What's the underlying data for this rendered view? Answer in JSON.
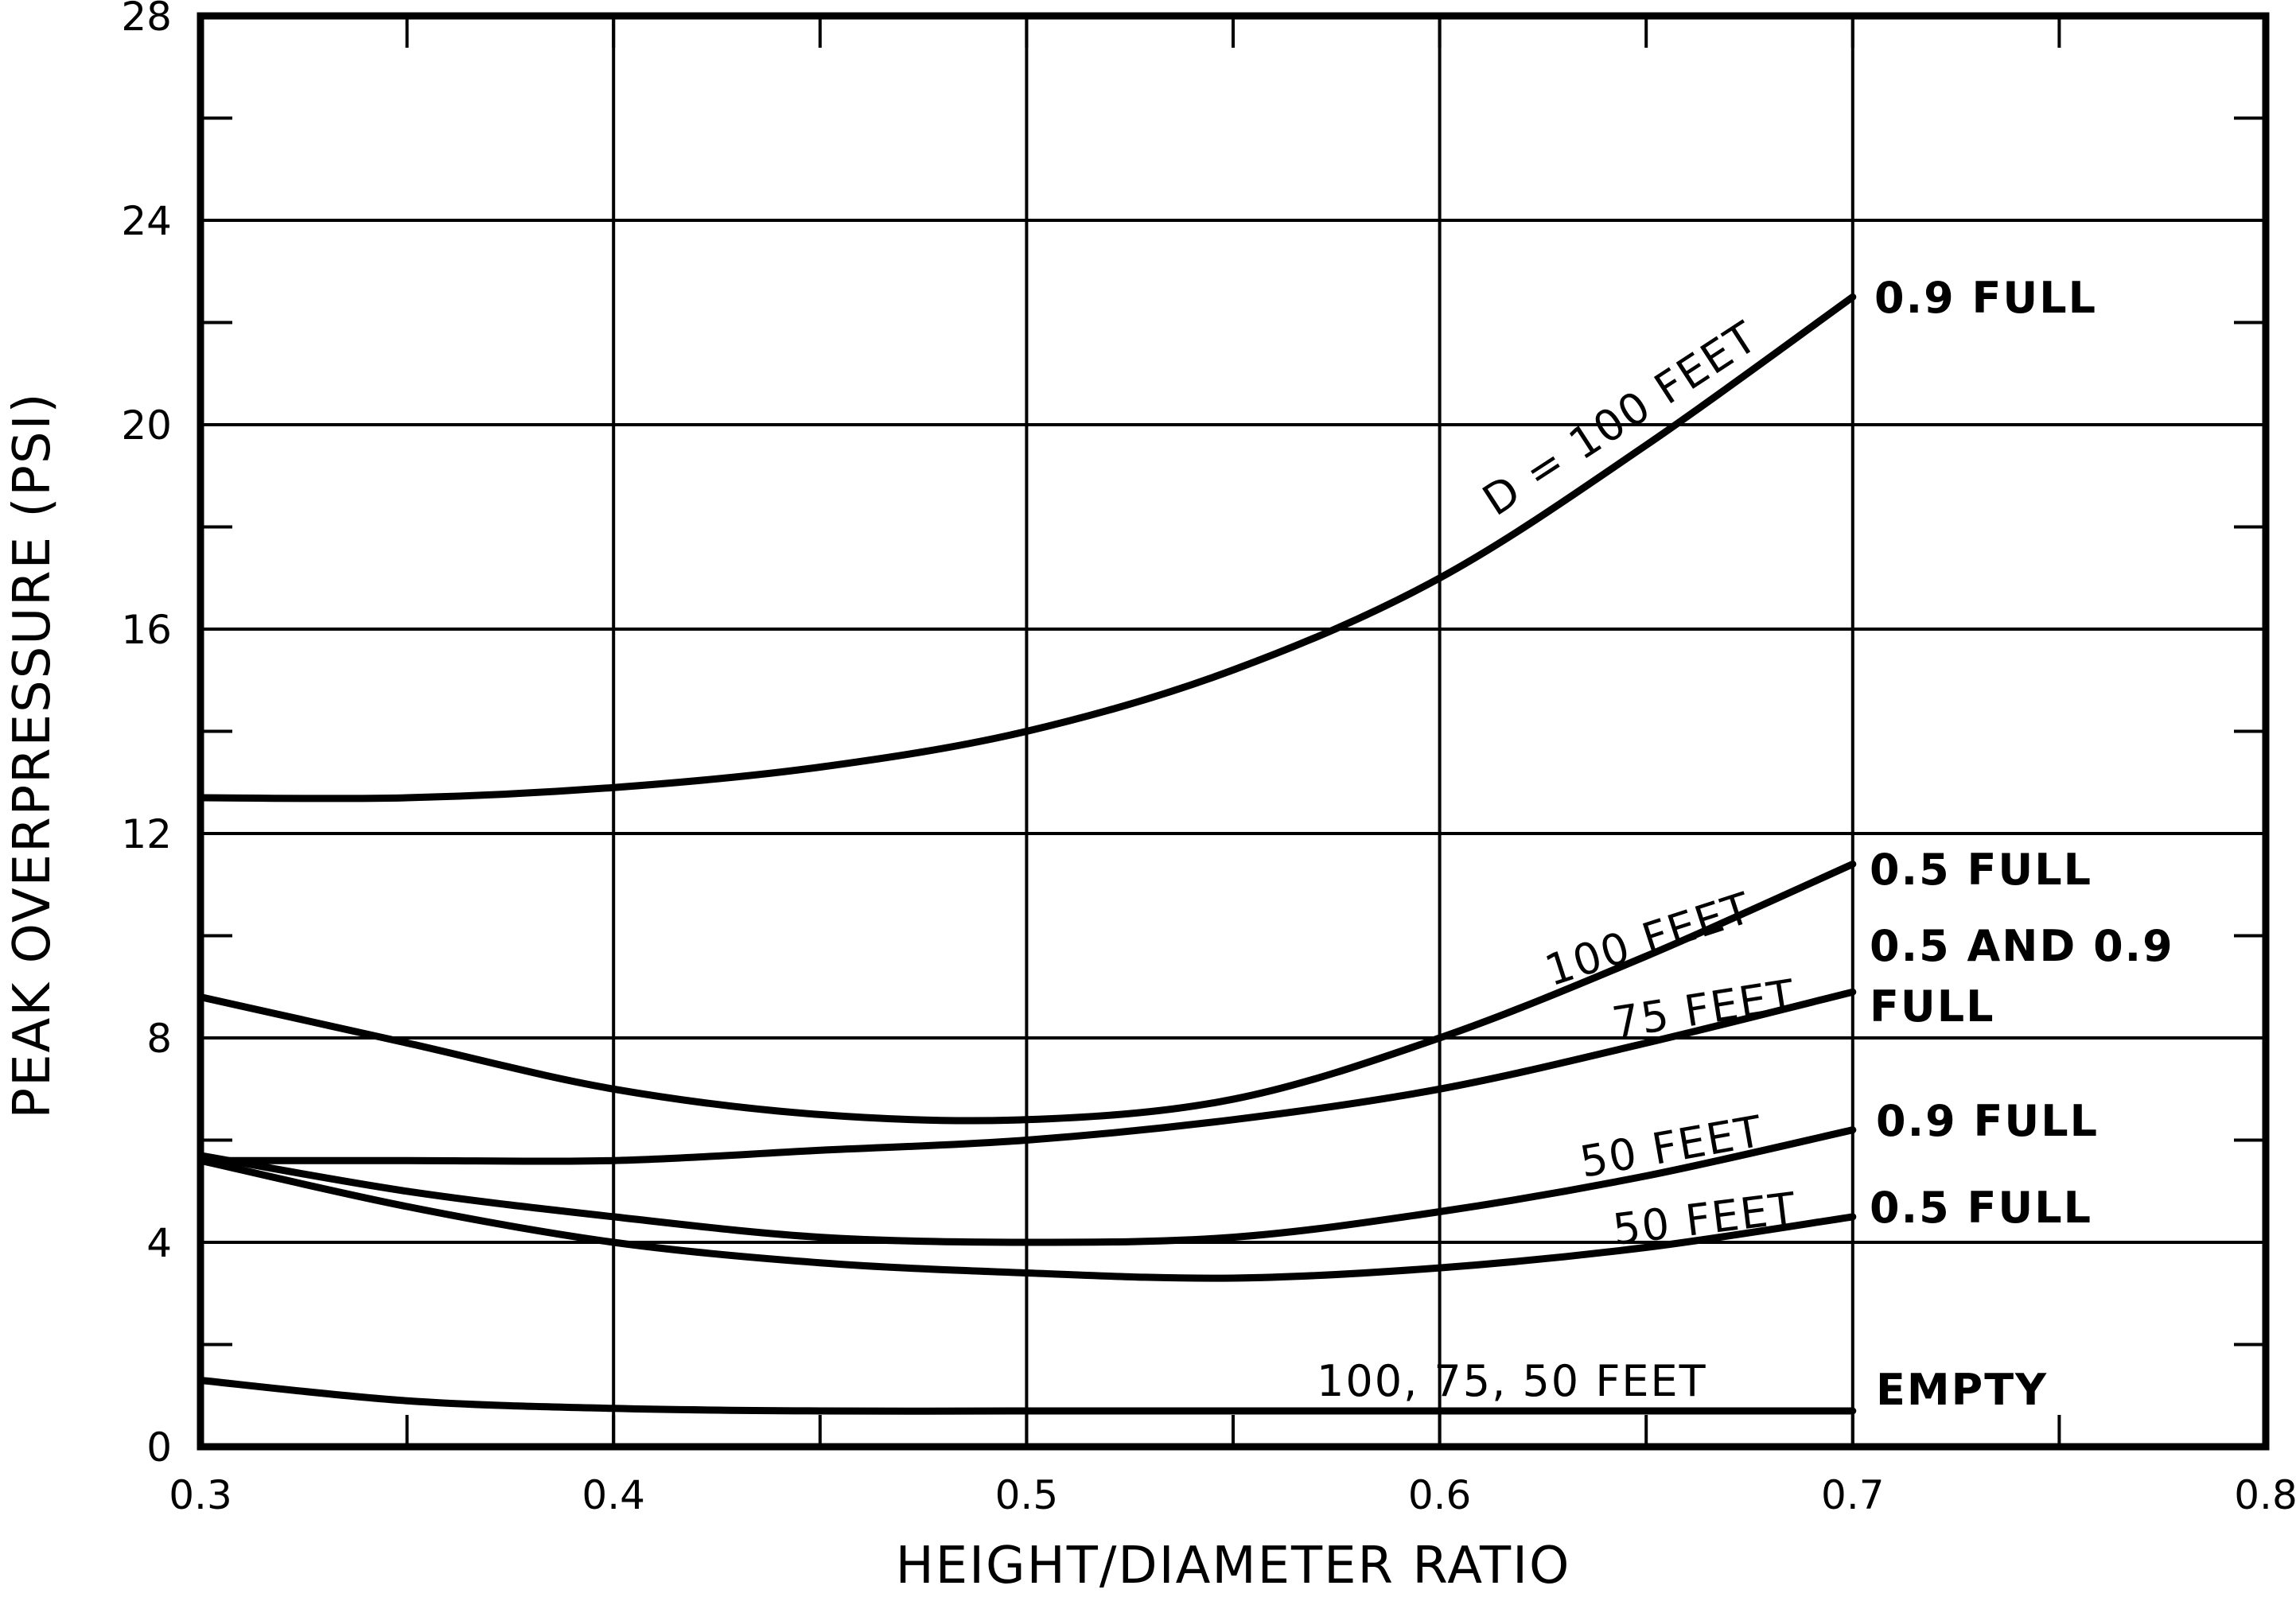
{
  "chart_data": {
    "type": "line",
    "title": "",
    "xlabel": "HEIGHT/DIAMETER RATIO",
    "ylabel": "PEAK OVERPRESSURE (PSI)",
    "xlim": [
      0.3,
      0.8
    ],
    "ylim": [
      0,
      28
    ],
    "x_ticks": [
      "0.3",
      "0.4",
      "0.5",
      "0.6",
      "0.7",
      "0.8"
    ],
    "y_ticks": [
      "0",
      "4",
      "8",
      "12",
      "16",
      "20",
      "24",
      "28"
    ],
    "grid": true,
    "series": [
      {
        "name": "D = 100 FEET",
        "end_label": "0.9 FULL",
        "x": [
          0.3,
          0.35,
          0.4,
          0.45,
          0.5,
          0.55,
          0.6,
          0.65,
          0.7
        ],
        "y": [
          12.7,
          12.7,
          12.9,
          13.3,
          14.0,
          15.2,
          17.0,
          19.6,
          22.5
        ]
      },
      {
        "name": "100 FEET",
        "end_label": "0.5 FULL",
        "x": [
          0.3,
          0.35,
          0.4,
          0.45,
          0.5,
          0.55,
          0.6,
          0.65,
          0.7
        ],
        "y": [
          8.8,
          7.9,
          7.0,
          6.5,
          6.4,
          6.8,
          8.0,
          9.6,
          11.4
        ]
      },
      {
        "name": "75 FEET",
        "end_label_line1": "0.5 AND 0.9",
        "end_label_line2": "FULL",
        "x": [
          0.3,
          0.35,
          0.4,
          0.45,
          0.5,
          0.55,
          0.6,
          0.65,
          0.7
        ],
        "y": [
          5.6,
          5.6,
          5.6,
          5.8,
          6.0,
          6.4,
          7.0,
          7.9,
          8.9
        ]
      },
      {
        "name": "50 FEET",
        "end_label": "0.9 FULL",
        "x": [
          0.3,
          0.35,
          0.4,
          0.45,
          0.5,
          0.55,
          0.6,
          0.65,
          0.7
        ],
        "y": [
          5.7,
          5.0,
          4.5,
          4.1,
          4.0,
          4.1,
          4.6,
          5.3,
          6.2
        ]
      },
      {
        "name": "50 FEET",
        "end_label": "0.5 FULL",
        "x": [
          0.3,
          0.35,
          0.4,
          0.45,
          0.5,
          0.55,
          0.6,
          0.65,
          0.7
        ],
        "y": [
          5.6,
          4.7,
          4.0,
          3.6,
          3.4,
          3.3,
          3.5,
          3.9,
          4.5
        ]
      },
      {
        "name": "100, 75, 50 FEET",
        "end_label": "EMPTY",
        "x": [
          0.3,
          0.35,
          0.4,
          0.45,
          0.5,
          0.55,
          0.6,
          0.65,
          0.7
        ],
        "y": [
          1.3,
          0.9,
          0.75,
          0.7,
          0.7,
          0.7,
          0.7,
          0.7,
          0.7
        ]
      }
    ]
  }
}
